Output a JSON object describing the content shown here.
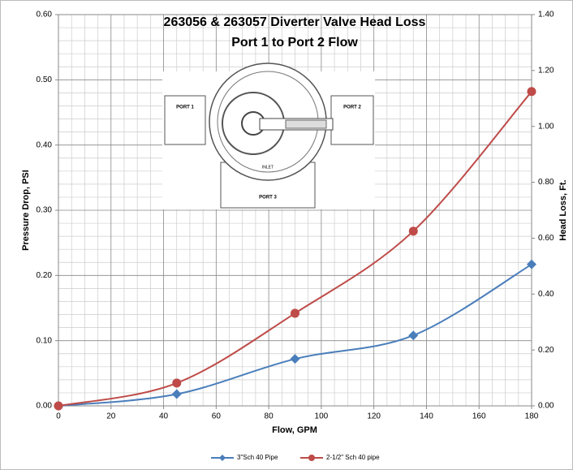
{
  "chart_data": {
    "type": "line",
    "title": "263056 & 263057 Diverter Valve Head Loss",
    "subtitle": "Port 1 to Port 2 Flow",
    "x_label": "Flow, GPM",
    "y_label": "Pressure Drop, PSI",
    "y2_label": "Head Loss, Ft.",
    "annotations": [
      "PORT 1",
      "PORT 2",
      "PORT 3",
      "INLET"
    ],
    "x": [
      0,
      45,
      90,
      135,
      180
    ],
    "series": [
      {
        "name": "3\"Sch 40  Pipe",
        "color": "#4a7ebb",
        "marker": "diamond",
        "values": [
          0,
          0.018,
          0.072,
          0.108,
          0.217
        ]
      },
      {
        "name": "2-1/2\" Sch 40 pipe",
        "color": "#be4b48",
        "marker": "circle",
        "values": [
          0,
          0.035,
          0.142,
          0.268,
          0.482
        ]
      }
    ],
    "xlim": [
      0,
      180
    ],
    "xticks": [
      0,
      20,
      40,
      60,
      80,
      100,
      120,
      140,
      160,
      180
    ],
    "ylim": [
      0,
      0.6
    ],
    "yticks": [
      {
        "value": 0,
        "label": "0.00"
      },
      {
        "value": 0.1,
        "label": "0.10"
      },
      {
        "value": 0.2,
        "label": "0.20"
      },
      {
        "value": 0.3,
        "label": "0.30"
      },
      {
        "value": 0.4,
        "label": "0.40"
      },
      {
        "value": 0.5,
        "label": "0.50"
      },
      {
        "value": 0.6,
        "label": "0.60"
      }
    ],
    "y2lim": [
      0,
      1.4
    ],
    "y2ticks": [
      {
        "value": 0,
        "label": "0.00"
      },
      {
        "value": 0.2,
        "label": "0.20"
      },
      {
        "value": 0.4,
        "label": "0.40"
      },
      {
        "value": 0.6,
        "label": "0.60"
      },
      {
        "value": 0.8,
        "label": "0.80"
      },
      {
        "value": 1,
        "label": "1.00"
      },
      {
        "value": 1.2,
        "label": "1.20"
      },
      {
        "value": 1.4,
        "label": "1.40"
      }
    ],
    "grid": true,
    "minor_grid": true,
    "legend": "bottom"
  }
}
